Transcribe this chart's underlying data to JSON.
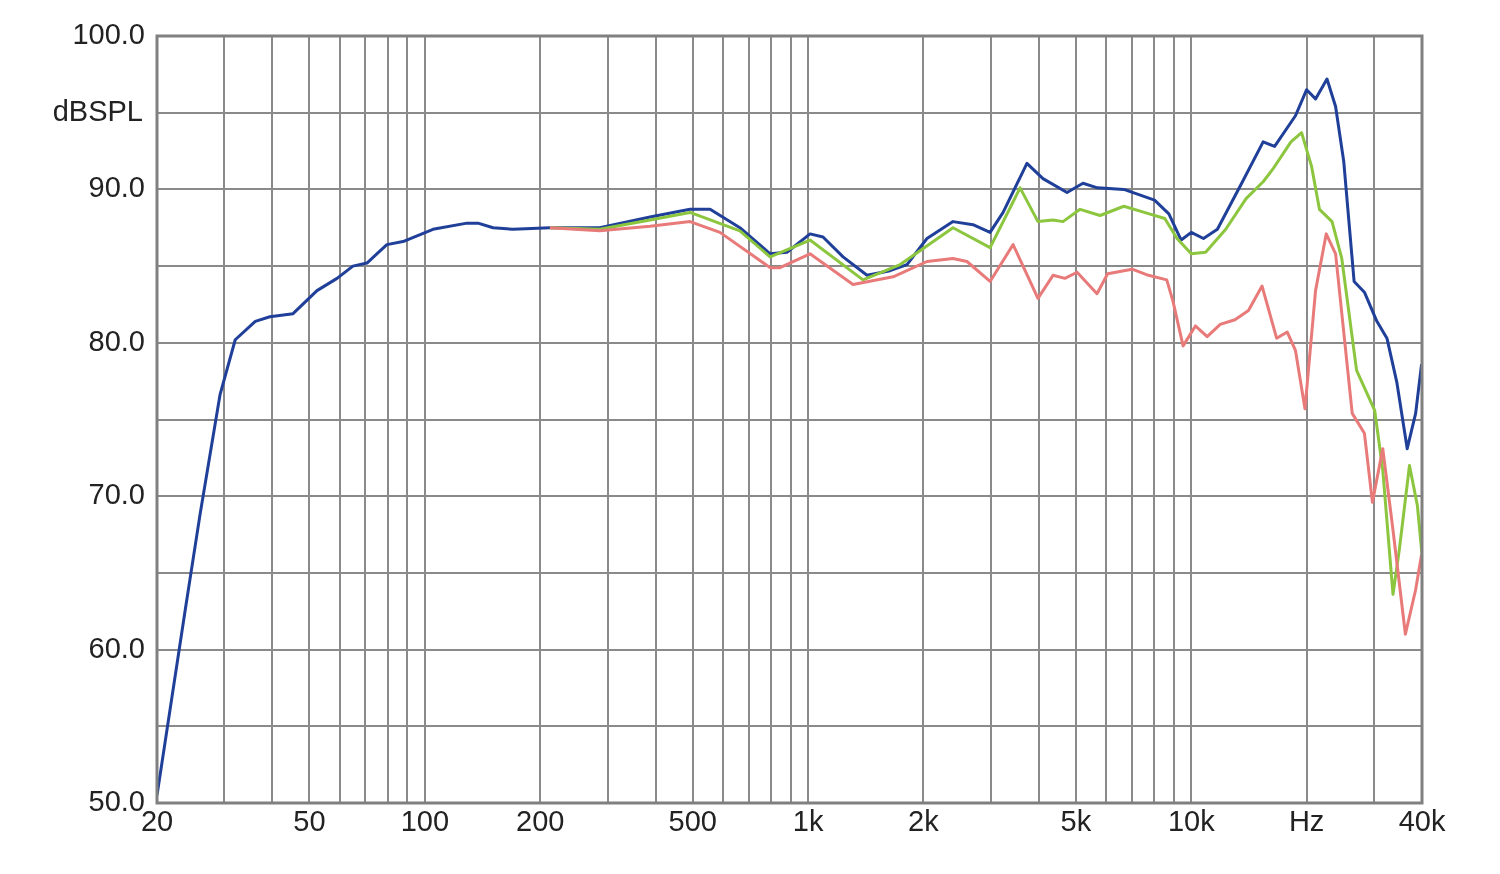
{
  "chart_data": {
    "type": "line",
    "ylabel": "dBSPL",
    "log": "x",
    "grid": true,
    "xlim": [
      20,
      40000
    ],
    "ylim": [
      50,
      100
    ],
    "xticks": [
      20,
      {
        "value": 30,
        "label": null
      },
      {
        "value": 40,
        "label": null
      },
      50,
      {
        "value": 60,
        "label": null
      },
      {
        "value": 70,
        "label": null
      },
      {
        "value": 80,
        "label": null
      },
      {
        "value": 90,
        "label": null
      },
      100,
      200,
      {
        "value": 300,
        "label": null
      },
      {
        "value": 400,
        "label": null
      },
      500,
      {
        "value": 600,
        "label": null
      },
      {
        "value": 700,
        "label": null
      },
      {
        "value": 800,
        "label": null
      },
      {
        "value": 900,
        "label": null
      },
      {
        "value": 1000,
        "label": "1k"
      },
      {
        "value": 2000,
        "label": "2k"
      },
      {
        "value": 3000,
        "label": null
      },
      {
        "value": 4000,
        "label": null
      },
      {
        "value": 5000,
        "label": "5k"
      },
      {
        "value": 6000,
        "label": null
      },
      {
        "value": 7000,
        "label": null
      },
      {
        "value": 8000,
        "label": null
      },
      {
        "value": 9000,
        "label": null
      },
      {
        "value": 10000,
        "label": "10k"
      },
      {
        "value": 20000,
        "label": "Hz"
      },
      {
        "value": 30000,
        "label": null
      },
      {
        "value": 40000,
        "label": "40k"
      }
    ],
    "yticks": [
      {
        "value": 50,
        "label": "50.0"
      },
      {
        "value": 55,
        "label": null
      },
      {
        "value": 60,
        "label": "60.0"
      },
      {
        "value": 65,
        "label": null
      },
      {
        "value": 70,
        "label": "70.0"
      },
      {
        "value": 75,
        "label": null
      },
      {
        "value": 80,
        "label": "80.0"
      },
      {
        "value": 85,
        "label": null
      },
      {
        "value": 90,
        "label": "90.0"
      },
      {
        "value": 95,
        "label": null
      },
      {
        "value": 100,
        "label": "100.0"
      }
    ],
    "series": [
      {
        "color": "#e87a7a",
        "x": [
          212,
          286,
          387,
          492,
          589,
          796,
          845,
          1012,
          1310,
          1667,
          2043,
          2389,
          2598,
          2985,
          3428,
          3980,
          4357,
          4680,
          5035,
          5675,
          6050,
          7010,
          7730,
          8630,
          8960,
          9520,
          10250,
          11000,
          11900,
          13000,
          14100,
          15300,
          16700,
          17800,
          18700,
          19800,
          21100,
          22500,
          23800,
          26300,
          28300,
          29700,
          31600,
          33600,
          36200,
          38500,
          39900
        ],
        "values": [
          87.5,
          87.3,
          87.6,
          87.9,
          87.2,
          84.9,
          84.9,
          85.8,
          83.8,
          84.3,
          85.3,
          85.5,
          85.3,
          84.0,
          86.4,
          82.9,
          84.4,
          84.2,
          84.6,
          83.2,
          84.5,
          84.8,
          84.4,
          84.1,
          82.7,
          79.8,
          81.1,
          80.4,
          81.2,
          81.5,
          82.1,
          83.7,
          80.3,
          80.7,
          79.5,
          75.7,
          83.4,
          87.1,
          85.8,
          75.4,
          74.1,
          69.6,
          73.1,
          67.8,
          61.0,
          63.9,
          66.2
        ]
      },
      {
        "color": "#8cc63f",
        "x": [
          212,
          286,
          387,
          492,
          664,
          796,
          1012,
          1391,
          1739,
          2389,
          2985,
          3575,
          3980,
          4357,
          4625,
          5127,
          5780,
          6670,
          7540,
          8530,
          9180,
          10000,
          10900,
          12300,
          13900,
          15400,
          16300,
          18200,
          19400,
          20600,
          21600,
          23300,
          24700,
          27000,
          30100,
          31600,
          33600,
          34900,
          37100,
          38900,
          40000
        ],
        "values": [
          87.5,
          87.4,
          88.0,
          88.5,
          87.3,
          85.6,
          86.7,
          84.1,
          85.1,
          87.5,
          86.2,
          90.1,
          87.9,
          88.0,
          87.9,
          88.7,
          88.3,
          88.9,
          88.5,
          88.1,
          86.8,
          85.8,
          85.9,
          87.4,
          89.4,
          90.5,
          91.3,
          93.1,
          93.7,
          91.5,
          88.7,
          87.9,
          85.5,
          78.2,
          75.6,
          71.7,
          63.6,
          66.5,
          72.0,
          69.4,
          66.2
        ]
      },
      {
        "color": "#1f3f99",
        "x": [
          20,
          23.7,
          25.9,
          29.2,
          32.0,
          36.1,
          39.4,
          45.3,
          52.3,
          59.0,
          64.9,
          70.6,
          79.6,
          87.7,
          105,
          128.8,
          137.6,
          150.7,
          169.9,
          212,
          286,
          387,
          492,
          555,
          664,
          796,
          881,
          1012,
          1094,
          1234,
          1425,
          1637,
          1812,
          2043,
          2389,
          2694,
          2985,
          3228,
          3725,
          4102,
          4740,
          5216,
          5690,
          6670,
          8020,
          8740,
          9410,
          10000,
          10760,
          11700,
          13600,
          15400,
          16500,
          18700,
          20000,
          21100,
          22600,
          23800,
          25000,
          26600,
          28300,
          30500,
          32400,
          34400,
          36600,
          38500,
          39900
        ],
        "values": [
          50.5,
          62.6,
          68.8,
          76.6,
          80.2,
          81.4,
          81.7,
          81.9,
          83.4,
          84.2,
          85.0,
          85.2,
          86.4,
          86.6,
          87.4,
          87.8,
          87.8,
          87.5,
          87.4,
          87.5,
          87.5,
          88.2,
          88.7,
          88.7,
          87.5,
          85.8,
          85.9,
          87.1,
          86.9,
          85.6,
          84.4,
          84.7,
          85.1,
          86.8,
          87.9,
          87.7,
          87.2,
          88.5,
          91.7,
          90.7,
          89.8,
          90.4,
          90.1,
          90.0,
          89.3,
          88.4,
          86.7,
          87.2,
          86.8,
          87.4,
          90.5,
          93.1,
          92.8,
          94.8,
          96.5,
          95.9,
          97.2,
          95.4,
          91.8,
          84.0,
          83.3,
          81.4,
          80.3,
          77.4,
          73.1,
          75.4,
          78.6
        ]
      }
    ]
  }
}
